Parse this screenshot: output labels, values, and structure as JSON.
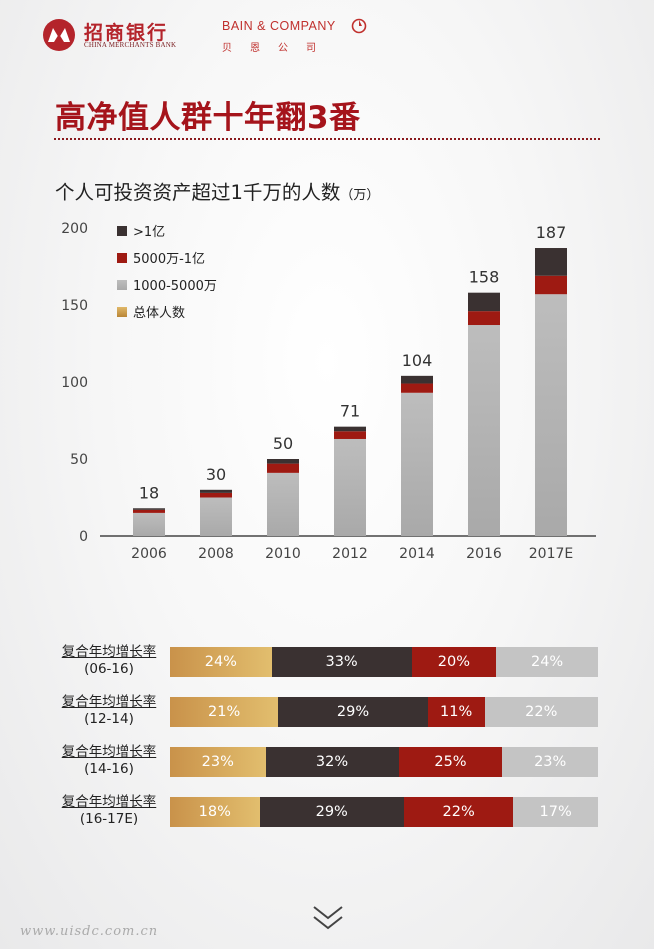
{
  "header": {
    "cmb_name_cn": "招商银行",
    "cmb_name_en": "CHINA MERCHANTS BANK",
    "bain_name_en": "BAIN & COMPANY",
    "bain_name_cn": "贝恩公司"
  },
  "title": "高净值人群十年翻3番",
  "subtitle": "个人可投资资产超过1千万的人数",
  "subtitle_unit": "（万）",
  "colors": {
    "accent": "#a5141b",
    "over_100m": "#3a3131",
    "range_50m_100m": "#9e1a12",
    "range_10m_50m": "#b5b5b5",
    "total": "#c9924a"
  },
  "chart_data": {
    "type": "bar",
    "stacked": true,
    "title": "个人可投资资产超过1千万的人数（万）",
    "categories": [
      "2006",
      "2008",
      "2010",
      "2012",
      "2014",
      "2016",
      "2017E"
    ],
    "series": [
      {
        "name": "1000-5000万",
        "values": [
          15,
          25,
          41,
          63,
          93,
          137,
          157
        ]
      },
      {
        "name": "5000万-1亿",
        "values": [
          2,
          3,
          6,
          5,
          6,
          9,
          12
        ]
      },
      {
        "name": ">1亿",
        "values": [
          1,
          2,
          3,
          3,
          5,
          12,
          18
        ]
      }
    ],
    "totals": [
      18,
      30,
      50,
      71,
      104,
      158,
      187
    ],
    "legend": [
      ">1亿",
      "5000万-1亿",
      "1000-5000万",
      "总体人数"
    ],
    "legend_position": "top-left",
    "yticks": [
      "0",
      "50",
      "100",
      "150",
      "200"
    ],
    "ylim": [
      0,
      200
    ],
    "xlabel": "",
    "ylabel": ""
  },
  "cagr": [
    {
      "label": "复合年均增长率",
      "period": "(06-16)",
      "values": [
        24,
        33,
        20,
        24
      ],
      "texts": [
        "24%",
        "33%",
        "20%",
        "24%"
      ]
    },
    {
      "label": "复合年均增长率",
      "period": "(12-14)",
      "values": [
        21,
        29,
        11,
        22
      ],
      "texts": [
        "21%",
        "29%",
        "11%",
        "22%"
      ]
    },
    {
      "label": "复合年均增长率",
      "period": "(14-16)",
      "values": [
        23,
        32,
        25,
        23
      ],
      "texts": [
        "23%",
        "32%",
        "25%",
        "23%"
      ]
    },
    {
      "label": "复合年均增长率",
      "period": "(16-17E)",
      "values": [
        18,
        29,
        22,
        17
      ],
      "texts": [
        "18%",
        "29%",
        "22%",
        "17%"
      ]
    }
  ],
  "nav": {
    "next_icon": "chevron-double-down-icon"
  },
  "watermark": "www.uisdc.com.cn"
}
